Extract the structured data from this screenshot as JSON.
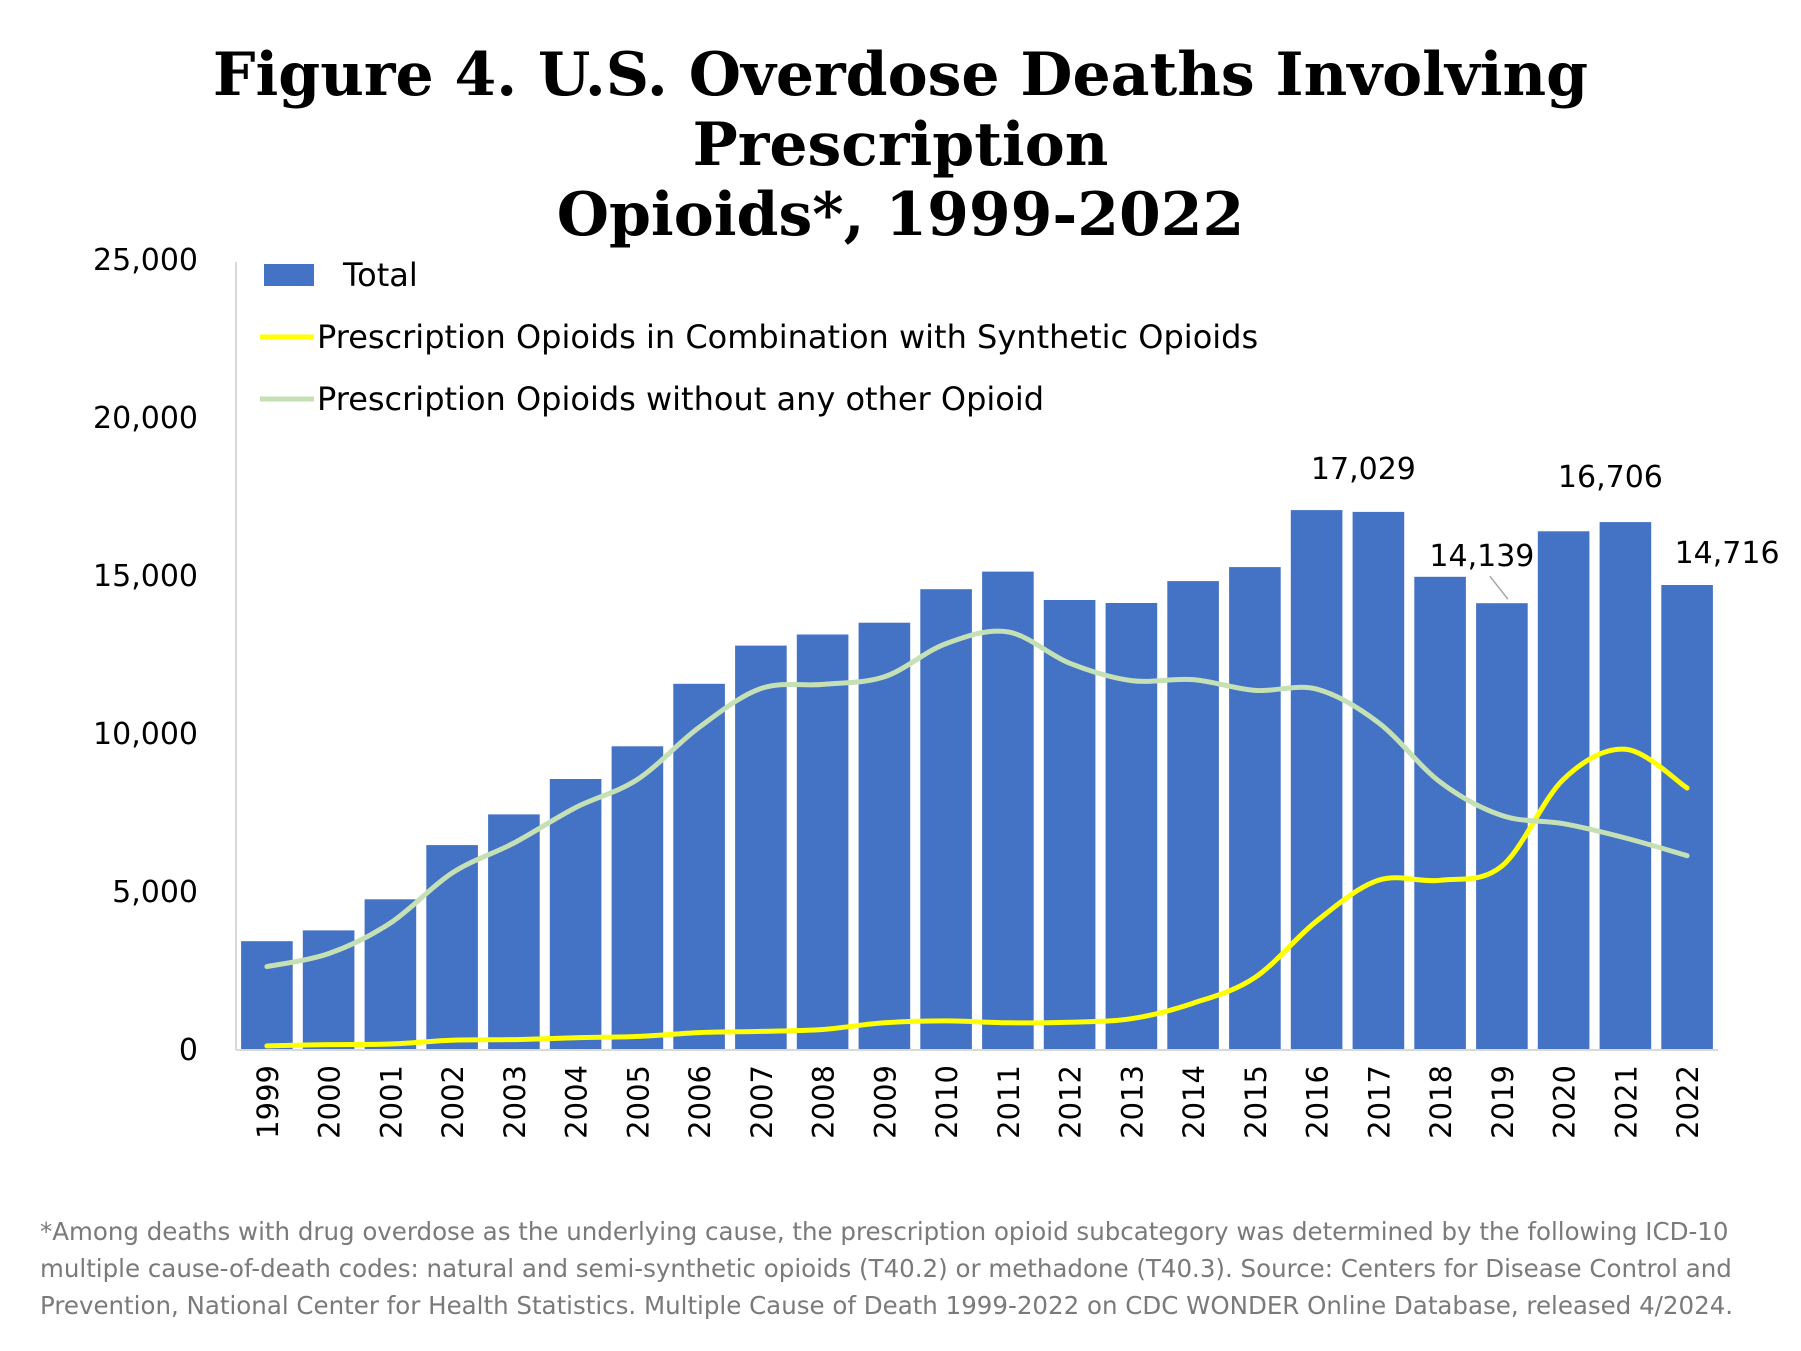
{
  "title_line1": "Figure 4. U.S. Overdose Deaths Involving Prescription",
  "title_line2": "Opioids*, 1999-2022",
  "footnote": "*Among deaths with drug overdose as the underlying cause, the prescription opioid subcategory was determined by the following ICD-10 multiple cause-of-death codes: natural and semi-synthetic opioids (T40.2) or methadone (T40.3). Source: Centers for Disease Control and Prevention, National Center for Health Statistics. Multiple Cause of Death 1999-2022 on CDC WONDER Online Database, released 4/2024.",
  "colors": {
    "total": "#4472c4",
    "combination": "#ffff00",
    "without_other": "#c5e0b4",
    "leader_line": "#a6a6a6"
  },
  "chart_data": {
    "type": "bar",
    "title": "Figure 4. U.S. Overdose Deaths Involving Prescription Opioids*, 1999-2022",
    "categories": [
      "1999",
      "2000",
      "2001",
      "2002",
      "2003",
      "2004",
      "2005",
      "2006",
      "2007",
      "2008",
      "2009",
      "2010",
      "2011",
      "2012",
      "2013",
      "2014",
      "2015",
      "2016",
      "2017",
      "2018",
      "2019",
      "2020",
      "2021",
      "2022"
    ],
    "ylim": [
      0,
      25000
    ],
    "yticks": [
      0,
      5000,
      10000,
      15000,
      20000,
      25000
    ],
    "ytick_labels": [
      "0",
      "5,000",
      "10,000",
      "15,000",
      "20,000",
      "25,000"
    ],
    "grid": false,
    "legend_position": "top-left",
    "series": [
      {
        "name": "Total",
        "type": "bar",
        "color": "#4472c4",
        "values": [
          3442,
          3785,
          4770,
          6485,
          7456,
          8577,
          9612,
          11589,
          12796,
          13149,
          13523,
          14583,
          15140,
          14240,
          14145,
          14838,
          15281,
          17087,
          17029,
          14975,
          14139,
          16416,
          16706,
          14716
        ]
      },
      {
        "name": "Prescription Opioids in Combination with Synthetic Opioids",
        "type": "line",
        "color": "#ffff00",
        "values": [
          130,
          170,
          190,
          310,
          330,
          390,
          430,
          550,
          590,
          650,
          860,
          920,
          860,
          880,
          990,
          1480,
          2290,
          4080,
          5370,
          5370,
          5820,
          8570,
          9520,
          8290
        ]
      },
      {
        "name": "Prescription Opioids without any other Opioid",
        "type": "line",
        "color": "#c5e0b4",
        "values": [
          2640,
          3050,
          4020,
          5600,
          6550,
          7670,
          8560,
          10210,
          11440,
          11570,
          11810,
          12860,
          13230,
          12240,
          11690,
          11720,
          11380,
          11420,
          10360,
          8480,
          7420,
          7160,
          6710,
          6150
        ]
      }
    ],
    "data_labels": [
      {
        "category": "2017",
        "text": "17,029"
      },
      {
        "category": "2019",
        "text": "14,139"
      },
      {
        "category": "2021",
        "text": "16,706"
      },
      {
        "category": "2022",
        "text": "14,716"
      }
    ]
  }
}
